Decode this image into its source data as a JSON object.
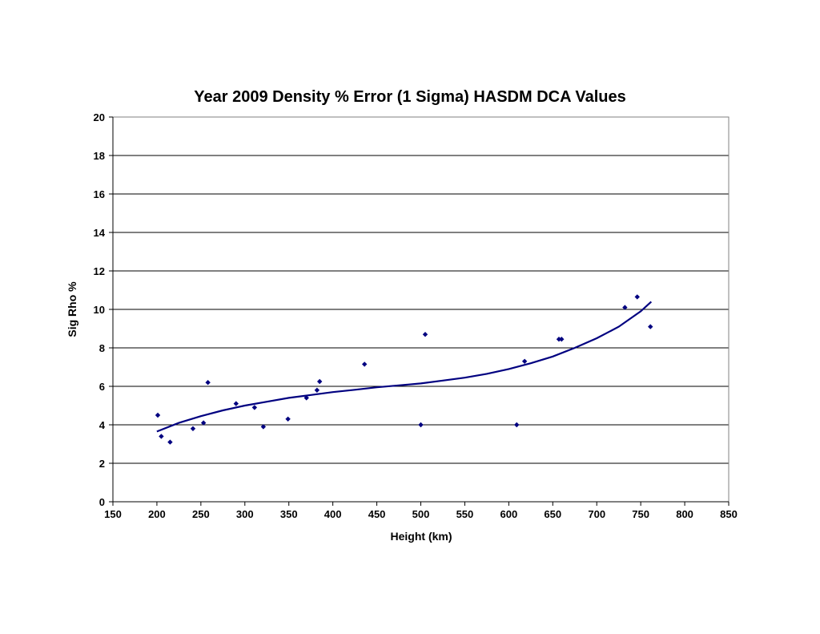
{
  "chart_data": {
    "type": "scatter",
    "title": "Year 2009 Density % Error (1 Sigma) HASDM DCA Values",
    "xlabel": "Height (km)",
    "ylabel": "Sig Rho %",
    "xlim": [
      150,
      850
    ],
    "ylim": [
      0,
      20
    ],
    "x_ticks": [
      150,
      200,
      250,
      300,
      350,
      400,
      450,
      500,
      550,
      600,
      650,
      700,
      750,
      800,
      850
    ],
    "y_ticks": [
      0,
      2,
      4,
      6,
      8,
      10,
      12,
      14,
      16,
      18,
      20
    ],
    "grid": "horizontal",
    "legend": "none",
    "colors": {
      "points": "#000080",
      "trend": "#000080",
      "grid": "#000000"
    },
    "series": [
      {
        "type": "scatter",
        "points": [
          {
            "x": 201,
            "y": 4.5
          },
          {
            "x": 205,
            "y": 3.4
          },
          {
            "x": 215,
            "y": 3.1
          },
          {
            "x": 241,
            "y": 3.8
          },
          {
            "x": 253,
            "y": 4.1
          },
          {
            "x": 258,
            "y": 6.2
          },
          {
            "x": 290,
            "y": 5.1
          },
          {
            "x": 311,
            "y": 4.9
          },
          {
            "x": 321,
            "y": 3.9
          },
          {
            "x": 349,
            "y": 4.3
          },
          {
            "x": 370,
            "y": 5.4
          },
          {
            "x": 382,
            "y": 5.8
          },
          {
            "x": 385,
            "y": 6.25
          },
          {
            "x": 436,
            "y": 7.15
          },
          {
            "x": 500,
            "y": 4.0
          },
          {
            "x": 505,
            "y": 8.7
          },
          {
            "x": 609,
            "y": 4.0
          },
          {
            "x": 618,
            "y": 7.3
          },
          {
            "x": 657,
            "y": 8.45
          },
          {
            "x": 660,
            "y": 8.45
          },
          {
            "x": 732,
            "y": 10.1
          },
          {
            "x": 746,
            "y": 10.65
          },
          {
            "x": 761,
            "y": 9.1
          }
        ]
      },
      {
        "type": "line",
        "points": [
          {
            "x": 200,
            "y": 3.65
          },
          {
            "x": 225,
            "y": 4.1
          },
          {
            "x": 250,
            "y": 4.45
          },
          {
            "x": 275,
            "y": 4.75
          },
          {
            "x": 300,
            "y": 5.0
          },
          {
            "x": 325,
            "y": 5.2
          },
          {
            "x": 350,
            "y": 5.4
          },
          {
            "x": 375,
            "y": 5.55
          },
          {
            "x": 400,
            "y": 5.7
          },
          {
            "x": 425,
            "y": 5.82
          },
          {
            "x": 450,
            "y": 5.95
          },
          {
            "x": 475,
            "y": 6.05
          },
          {
            "x": 500,
            "y": 6.15
          },
          {
            "x": 525,
            "y": 6.3
          },
          {
            "x": 550,
            "y": 6.45
          },
          {
            "x": 575,
            "y": 6.65
          },
          {
            "x": 600,
            "y": 6.9
          },
          {
            "x": 625,
            "y": 7.2
          },
          {
            "x": 650,
            "y": 7.55
          },
          {
            "x": 675,
            "y": 8.0
          },
          {
            "x": 700,
            "y": 8.5
          },
          {
            "x": 725,
            "y": 9.1
          },
          {
            "x": 750,
            "y": 9.9
          },
          {
            "x": 762,
            "y": 10.4
          }
        ]
      }
    ]
  }
}
